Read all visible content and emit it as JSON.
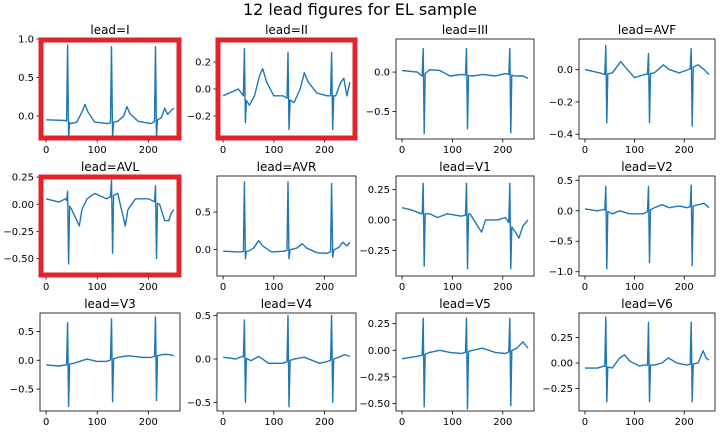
{
  "figure": {
    "title": "12 lead figures for EL sample"
  },
  "chart_data": [
    {
      "type": "line",
      "title": "lead=I",
      "xlim": [
        -12,
        262
      ],
      "ylim": [
        -0.3,
        1.0
      ],
      "xticks": [
        0,
        100,
        200
      ],
      "yticks": [
        0.0,
        0.5,
        1.0
      ],
      "ytick_labels": [
        "0.0",
        "0.5",
        "1.0"
      ],
      "color": "#1f77b4",
      "highlighted": true,
      "highlight_color": "#e3232c",
      "spikes": [
        {
          "x": 42,
          "hi": 0.92,
          "lo": -0.28
        },
        {
          "x": 128,
          "hi": 0.9,
          "lo": -0.28
        },
        {
          "x": 214,
          "hi": 0.9,
          "lo": -0.27
        }
      ],
      "baseline": [
        [
          0,
          -0.05
        ],
        [
          38,
          -0.06
        ],
        [
          50,
          -0.1
        ],
        [
          60,
          -0.08
        ],
        [
          70,
          0.05
        ],
        [
          76,
          0.15
        ],
        [
          82,
          0.05
        ],
        [
          95,
          -0.08
        ],
        [
          120,
          -0.1
        ],
        [
          140,
          -0.07
        ],
        [
          152,
          0.0
        ],
        [
          158,
          0.12
        ],
        [
          164,
          0.03
        ],
        [
          180,
          -0.07
        ],
        [
          205,
          -0.1
        ],
        [
          226,
          -0.02
        ],
        [
          232,
          0.1
        ],
        [
          238,
          0.02
        ],
        [
          245,
          0.07
        ],
        [
          250,
          0.1
        ]
      ]
    },
    {
      "type": "line",
      "title": "lead=II",
      "xlim": [
        -12,
        262
      ],
      "ylim": [
        -0.37,
        0.37
      ],
      "xticks": [
        0,
        100,
        200
      ],
      "yticks": [
        -0.2,
        0.0,
        0.2
      ],
      "ytick_labels": [
        "−0.2",
        "0.0",
        "0.2"
      ],
      "color": "#1f77b4",
      "highlighted": true,
      "highlight_color": "#e3232c",
      "spikes": [
        {
          "x": 42,
          "hi": 0.3,
          "lo": -0.25
        },
        {
          "x": 128,
          "hi": 0.27,
          "lo": -0.3
        },
        {
          "x": 214,
          "hi": 0.27,
          "lo": -0.3
        }
      ],
      "baseline": [
        [
          0,
          -0.05
        ],
        [
          30,
          0.0
        ],
        [
          40,
          -0.05
        ],
        [
          52,
          -0.12
        ],
        [
          62,
          -0.05
        ],
        [
          72,
          0.1
        ],
        [
          78,
          0.15
        ],
        [
          86,
          0.05
        ],
        [
          100,
          -0.05
        ],
        [
          118,
          -0.05
        ],
        [
          140,
          -0.1
        ],
        [
          152,
          0.0
        ],
        [
          160,
          0.12
        ],
        [
          168,
          0.05
        ],
        [
          185,
          -0.03
        ],
        [
          205,
          -0.05
        ],
        [
          222,
          -0.05
        ],
        [
          232,
          0.05
        ],
        [
          238,
          0.08
        ],
        [
          244,
          -0.05
        ],
        [
          250,
          0.05
        ]
      ]
    },
    {
      "type": "line",
      "title": "lead=III",
      "xlim": [
        -12,
        262
      ],
      "ylim": [
        -0.85,
        0.42
      ],
      "xticks": [
        0,
        100,
        200
      ],
      "yticks": [
        -0.5,
        0.0
      ],
      "ytick_labels": [
        "−0.5",
        "0.0"
      ],
      "color": "#1f77b4",
      "highlighted": false,
      "spikes": [
        {
          "x": 42,
          "hi": 0.3,
          "lo": -0.78
        },
        {
          "x": 128,
          "hi": 0.3,
          "lo": -0.72
        },
        {
          "x": 214,
          "hi": 0.3,
          "lo": -0.77
        }
      ],
      "baseline": [
        [
          0,
          0.02
        ],
        [
          30,
          0.0
        ],
        [
          40,
          -0.05
        ],
        [
          55,
          0.03
        ],
        [
          75,
          0.02
        ],
        [
          95,
          -0.05
        ],
        [
          118,
          -0.03
        ],
        [
          140,
          -0.05
        ],
        [
          160,
          -0.03
        ],
        [
          185,
          -0.05
        ],
        [
          205,
          -0.02
        ],
        [
          225,
          -0.05
        ],
        [
          240,
          -0.05
        ],
        [
          250,
          -0.08
        ]
      ]
    },
    {
      "type": "line",
      "title": "lead=AVF",
      "xlim": [
        -12,
        262
      ],
      "ylim": [
        -0.43,
        0.19
      ],
      "xticks": [
        0,
        100,
        200
      ],
      "yticks": [
        -0.4,
        -0.2,
        0.0
      ],
      "ytick_labels": [
        "−0.4",
        "−0.2",
        "0.0"
      ],
      "color": "#1f77b4",
      "highlighted": false,
      "spikes": [
        {
          "x": 42,
          "hi": 0.15,
          "lo": -0.33
        },
        {
          "x": 128,
          "hi": 0.1,
          "lo": -0.33
        },
        {
          "x": 214,
          "hi": 0.13,
          "lo": -0.35
        }
      ],
      "baseline": [
        [
          0,
          0.0
        ],
        [
          30,
          -0.02
        ],
        [
          40,
          -0.03
        ],
        [
          55,
          -0.02
        ],
        [
          72,
          0.05
        ],
        [
          80,
          0.02
        ],
        [
          100,
          -0.05
        ],
        [
          120,
          -0.03
        ],
        [
          140,
          -0.02
        ],
        [
          158,
          0.03
        ],
        [
          170,
          0.0
        ],
        [
          190,
          -0.02
        ],
        [
          208,
          0.0
        ],
        [
          228,
          0.03
        ],
        [
          240,
          0.0
        ],
        [
          250,
          -0.03
        ]
      ]
    },
    {
      "type": "line",
      "title": "lead=AVL",
      "xlim": [
        -12,
        262
      ],
      "ylim": [
        -0.66,
        0.26
      ],
      "xticks": [
        0,
        100,
        200
      ],
      "yticks": [
        -0.5,
        -0.25,
        0.0,
        0.25
      ],
      "ytick_labels": [
        "−0.50",
        "−0.25",
        "0.00",
        "0.25"
      ],
      "color": "#1f77b4",
      "highlighted": true,
      "highlight_color": "#e3232c",
      "spikes": [
        {
          "x": 42,
          "hi": 0.12,
          "lo": -0.55
        },
        {
          "x": 128,
          "hi": 0.22,
          "lo": -0.45
        },
        {
          "x": 214,
          "hi": 0.17,
          "lo": -0.5
        }
      ],
      "baseline": [
        [
          0,
          0.05
        ],
        [
          25,
          0.02
        ],
        [
          38,
          0.05
        ],
        [
          50,
          -0.05
        ],
        [
          60,
          -0.15
        ],
        [
          65,
          -0.2
        ],
        [
          70,
          -0.05
        ],
        [
          80,
          0.05
        ],
        [
          95,
          0.1
        ],
        [
          118,
          0.05
        ],
        [
          140,
          0.1
        ],
        [
          150,
          -0.1
        ],
        [
          155,
          -0.2
        ],
        [
          160,
          -0.05
        ],
        [
          175,
          0.05
        ],
        [
          200,
          0.05
        ],
        [
          222,
          0.0
        ],
        [
          232,
          -0.15
        ],
        [
          240,
          -0.15
        ],
        [
          245,
          -0.08
        ],
        [
          250,
          -0.05
        ]
      ]
    },
    {
      "type": "line",
      "title": "lead=AVR",
      "xlim": [
        -12,
        262
      ],
      "ylim": [
        -0.35,
        0.98
      ],
      "xticks": [
        0,
        100,
        200
      ],
      "yticks": [
        0.0,
        0.5
      ],
      "ytick_labels": [
        "0.0",
        "0.5"
      ],
      "color": "#1f77b4",
      "highlighted": false,
      "spikes": [
        {
          "x": 42,
          "hi": 0.9,
          "lo": -0.12
        },
        {
          "x": 128,
          "hi": 0.9,
          "lo": -0.12
        },
        {
          "x": 214,
          "hi": 0.88,
          "lo": -0.1
        }
      ],
      "baseline": [
        [
          0,
          -0.02
        ],
        [
          30,
          -0.03
        ],
        [
          50,
          -0.02
        ],
        [
          60,
          0.02
        ],
        [
          70,
          0.12
        ],
        [
          78,
          0.05
        ],
        [
          95,
          -0.03
        ],
        [
          120,
          -0.02
        ],
        [
          145,
          0.02
        ],
        [
          156,
          0.08
        ],
        [
          165,
          0.02
        ],
        [
          185,
          -0.04
        ],
        [
          205,
          -0.05
        ],
        [
          228,
          0.03
        ],
        [
          236,
          0.1
        ],
        [
          244,
          0.05
        ],
        [
          250,
          0.1
        ]
      ]
    },
    {
      "type": "line",
      "title": "lead=V1",
      "xlim": [
        -12,
        262
      ],
      "ylim": [
        -0.46,
        0.36
      ],
      "xticks": [
        0,
        100,
        200
      ],
      "yticks": [
        -0.25,
        0.0,
        0.25
      ],
      "ytick_labels": [
        "−0.25",
        "0.00",
        "0.25"
      ],
      "color": "#1f77b4",
      "highlighted": false,
      "spikes": [
        {
          "x": 42,
          "hi": 0.3,
          "lo": -0.38
        },
        {
          "x": 128,
          "hi": 0.3,
          "lo": -0.4
        },
        {
          "x": 214,
          "hi": 0.3,
          "lo": -0.4
        }
      ],
      "baseline": [
        [
          0,
          0.1
        ],
        [
          20,
          0.08
        ],
        [
          38,
          0.05
        ],
        [
          55,
          0.05
        ],
        [
          70,
          0.02
        ],
        [
          90,
          0.05
        ],
        [
          118,
          0.03
        ],
        [
          135,
          0.05
        ],
        [
          150,
          -0.05
        ],
        [
          158,
          -0.1
        ],
        [
          166,
          0.0
        ],
        [
          190,
          0.0
        ],
        [
          205,
          0.02
        ],
        [
          225,
          -0.1
        ],
        [
          232,
          -0.15
        ],
        [
          240,
          -0.05
        ],
        [
          250,
          0.0
        ]
      ]
    },
    {
      "type": "line",
      "title": "lead=V2",
      "xlim": [
        -12,
        262
      ],
      "ylim": [
        -1.07,
        0.57
      ],
      "xticks": [
        0,
        100,
        200
      ],
      "yticks": [
        -1.0,
        -0.5,
        0.0,
        0.5
      ],
      "ytick_labels": [
        "−1.0",
        "−0.5",
        "0.0",
        "0.5"
      ],
      "color": "#1f77b4",
      "highlighted": false,
      "spikes": [
        {
          "x": 42,
          "hi": 0.4,
          "lo": -0.95
        },
        {
          "x": 128,
          "hi": 0.4,
          "lo": -0.85
        },
        {
          "x": 214,
          "hi": 0.42,
          "lo": -0.9
        }
      ],
      "baseline": [
        [
          0,
          0.03
        ],
        [
          25,
          0.0
        ],
        [
          38,
          0.02
        ],
        [
          55,
          -0.05
        ],
        [
          70,
          0.0
        ],
        [
          90,
          -0.05
        ],
        [
          118,
          -0.05
        ],
        [
          140,
          0.05
        ],
        [
          155,
          0.1
        ],
        [
          170,
          0.05
        ],
        [
          190,
          0.08
        ],
        [
          205,
          0.05
        ],
        [
          228,
          0.1
        ],
        [
          240,
          0.12
        ],
        [
          250,
          0.05
        ]
      ]
    },
    {
      "type": "line",
      "title": "lead=V3",
      "xlim": [
        -12,
        262
      ],
      "ylim": [
        -0.88,
        0.82
      ],
      "xticks": [
        0,
        100,
        200
      ],
      "yticks": [
        -0.5,
        0.0,
        0.5
      ],
      "ytick_labels": [
        "−0.5",
        "0.0",
        "0.5"
      ],
      "color": "#1f77b4",
      "highlighted": false,
      "spikes": [
        {
          "x": 42,
          "hi": 0.65,
          "lo": -0.8
        },
        {
          "x": 128,
          "hi": 0.72,
          "lo": -0.72
        },
        {
          "x": 214,
          "hi": 0.75,
          "lo": -0.7
        }
      ],
      "baseline": [
        [
          0,
          -0.08
        ],
        [
          25,
          -0.1
        ],
        [
          38,
          -0.08
        ],
        [
          55,
          -0.05
        ],
        [
          80,
          0.02
        ],
        [
          100,
          -0.02
        ],
        [
          118,
          -0.02
        ],
        [
          140,
          0.05
        ],
        [
          160,
          0.08
        ],
        [
          190,
          0.05
        ],
        [
          205,
          0.05
        ],
        [
          228,
          0.1
        ],
        [
          240,
          0.1
        ],
        [
          250,
          0.08
        ]
      ]
    },
    {
      "type": "line",
      "title": "lead=V4",
      "xlim": [
        -12,
        262
      ],
      "ylim": [
        -0.6,
        0.53
      ],
      "xticks": [
        0,
        100,
        200
      ],
      "yticks": [
        -0.5,
        0.0,
        0.5
      ],
      "ytick_labels": [
        "−0.5",
        "0.0",
        "0.5"
      ],
      "color": "#1f77b4",
      "highlighted": false,
      "spikes": [
        {
          "x": 42,
          "hi": 0.45,
          "lo": -0.5
        },
        {
          "x": 128,
          "hi": 0.5,
          "lo": -0.55
        },
        {
          "x": 214,
          "hi": 0.5,
          "lo": -0.5
        }
      ],
      "baseline": [
        [
          0,
          0.02
        ],
        [
          25,
          0.0
        ],
        [
          38,
          0.03
        ],
        [
          55,
          -0.02
        ],
        [
          70,
          0.03
        ],
        [
          90,
          -0.05
        ],
        [
          118,
          -0.05
        ],
        [
          140,
          0.0
        ],
        [
          160,
          0.02
        ],
        [
          190,
          -0.05
        ],
        [
          205,
          -0.03
        ],
        [
          228,
          0.02
        ],
        [
          240,
          0.05
        ],
        [
          250,
          0.03
        ]
      ]
    },
    {
      "type": "line",
      "title": "lead=V5",
      "xlim": [
        -12,
        262
      ],
      "ylim": [
        -0.57,
        0.35
      ],
      "xticks": [
        0,
        100,
        200
      ],
      "yticks": [
        -0.5,
        -0.25,
        0.0,
        0.25
      ],
      "ytick_labels": [
        "−0.50",
        "−0.25",
        "0.00",
        "0.25"
      ],
      "color": "#1f77b4",
      "highlighted": false,
      "spikes": [
        {
          "x": 42,
          "hi": 0.3,
          "lo": -0.53
        },
        {
          "x": 128,
          "hi": 0.3,
          "lo": -0.55
        },
        {
          "x": 214,
          "hi": 0.3,
          "lo": -0.52
        }
      ],
      "baseline": [
        [
          0,
          -0.08
        ],
        [
          25,
          -0.06
        ],
        [
          38,
          -0.05
        ],
        [
          55,
          -0.02
        ],
        [
          75,
          0.0
        ],
        [
          95,
          -0.02
        ],
        [
          118,
          -0.03
        ],
        [
          140,
          0.0
        ],
        [
          160,
          0.02
        ],
        [
          185,
          -0.02
        ],
        [
          205,
          -0.03
        ],
        [
          228,
          0.02
        ],
        [
          240,
          0.08
        ],
        [
          250,
          0.02
        ]
      ]
    },
    {
      "type": "line",
      "title": "lead=V6",
      "xlim": [
        -12,
        262
      ],
      "ylim": [
        -0.47,
        0.49
      ],
      "xticks": [
        0,
        100,
        200
      ],
      "yticks": [
        -0.25,
        0.0,
        0.25
      ],
      "ytick_labels": [
        "−0.25",
        "0.00",
        "0.25"
      ],
      "color": "#1f77b4",
      "highlighted": false,
      "spikes": [
        {
          "x": 42,
          "hi": 0.45,
          "lo": -0.38
        },
        {
          "x": 128,
          "hi": 0.4,
          "lo": -0.38
        },
        {
          "x": 214,
          "hi": 0.4,
          "lo": -0.38
        }
      ],
      "baseline": [
        [
          0,
          -0.05
        ],
        [
          25,
          -0.05
        ],
        [
          38,
          -0.03
        ],
        [
          55,
          -0.05
        ],
        [
          70,
          0.05
        ],
        [
          80,
          0.08
        ],
        [
          90,
          0.02
        ],
        [
          110,
          -0.03
        ],
        [
          118,
          -0.02
        ],
        [
          140,
          -0.02
        ],
        [
          155,
          0.0
        ],
        [
          168,
          0.05
        ],
        [
          185,
          0.0
        ],
        [
          205,
          -0.02
        ],
        [
          228,
          0.0
        ],
        [
          238,
          0.12
        ],
        [
          244,
          0.05
        ],
        [
          250,
          0.03
        ]
      ]
    }
  ]
}
